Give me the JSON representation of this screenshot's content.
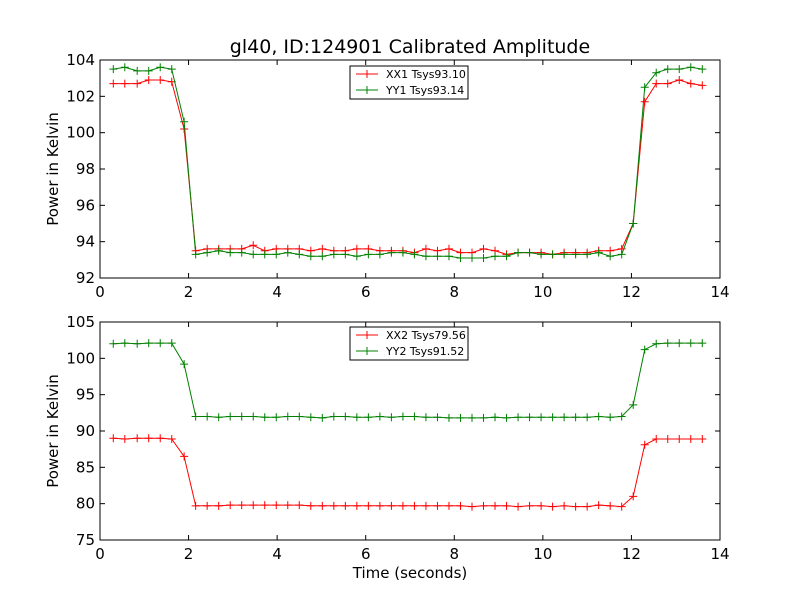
{
  "title": "gl40, ID:124901 Calibrated Amplitude",
  "chart_data": [
    {
      "type": "line",
      "ylabel": "Power in Kelvin",
      "xlabel": "",
      "xlim": [
        0,
        14
      ],
      "ylim": [
        92,
        104
      ],
      "xticks": [
        0,
        2,
        4,
        6,
        8,
        10,
        12,
        14
      ],
      "yticks": [
        92,
        94,
        96,
        98,
        100,
        102,
        104
      ],
      "grid": false,
      "legend_position": "top-center",
      "x": [
        0.3,
        0.56,
        0.84,
        1.1,
        1.36,
        1.62,
        1.9,
        2.16,
        2.42,
        2.68,
        2.94,
        3.2,
        3.46,
        3.72,
        3.98,
        4.24,
        4.5,
        4.76,
        5.02,
        5.28,
        5.54,
        5.8,
        6.06,
        6.32,
        6.58,
        6.84,
        7.1,
        7.36,
        7.62,
        7.88,
        8.14,
        8.4,
        8.66,
        8.92,
        9.18,
        9.44,
        9.7,
        9.96,
        10.22,
        10.48,
        10.74,
        11.0,
        11.26,
        11.52,
        11.78,
        12.04,
        12.3,
        12.56,
        12.82,
        13.08,
        13.34,
        13.6
      ],
      "series": [
        {
          "name": "XX1 Tsys93.10",
          "color": "#ff0000",
          "values": [
            102.7,
            102.7,
            102.7,
            102.9,
            102.9,
            102.8,
            100.2,
            93.5,
            93.6,
            93.6,
            93.6,
            93.6,
            93.8,
            93.5,
            93.6,
            93.6,
            93.6,
            93.5,
            93.6,
            93.5,
            93.5,
            93.6,
            93.6,
            93.5,
            93.5,
            93.5,
            93.4,
            93.6,
            93.5,
            93.6,
            93.4,
            93.4,
            93.6,
            93.5,
            93.3,
            93.4,
            93.4,
            93.4,
            93.3,
            93.4,
            93.4,
            93.4,
            93.5,
            93.5,
            93.6,
            95.0,
            101.7,
            102.7,
            102.7,
            102.9,
            102.7,
            102.6
          ]
        },
        {
          "name": "YY1 Tsys93.14",
          "color": "#008000",
          "values": [
            103.5,
            103.6,
            103.4,
            103.4,
            103.6,
            103.5,
            100.6,
            93.3,
            93.4,
            93.5,
            93.4,
            93.4,
            93.3,
            93.3,
            93.3,
            93.4,
            93.3,
            93.2,
            93.2,
            93.3,
            93.3,
            93.2,
            93.3,
            93.3,
            93.4,
            93.4,
            93.3,
            93.2,
            93.2,
            93.2,
            93.1,
            93.1,
            93.1,
            93.2,
            93.2,
            93.4,
            93.4,
            93.3,
            93.3,
            93.3,
            93.3,
            93.3,
            93.4,
            93.2,
            93.3,
            95.0,
            102.5,
            103.3,
            103.5,
            103.5,
            103.6,
            103.5
          ]
        }
      ]
    },
    {
      "type": "line",
      "ylabel": "Power in Kelvin",
      "xlabel": "Time (seconds)",
      "xlim": [
        0,
        14
      ],
      "ylim": [
        75,
        105
      ],
      "xticks": [
        0,
        2,
        4,
        6,
        8,
        10,
        12,
        14
      ],
      "yticks": [
        75,
        80,
        85,
        90,
        95,
        100,
        105
      ],
      "grid": false,
      "legend_position": "top-center",
      "x": [
        0.3,
        0.56,
        0.84,
        1.1,
        1.36,
        1.62,
        1.9,
        2.16,
        2.42,
        2.68,
        2.94,
        3.2,
        3.46,
        3.72,
        3.98,
        4.24,
        4.5,
        4.76,
        5.02,
        5.28,
        5.54,
        5.8,
        6.06,
        6.32,
        6.58,
        6.84,
        7.1,
        7.36,
        7.62,
        7.88,
        8.14,
        8.4,
        8.66,
        8.92,
        9.18,
        9.44,
        9.7,
        9.96,
        10.22,
        10.48,
        10.74,
        11.0,
        11.26,
        11.52,
        11.78,
        12.04,
        12.3,
        12.56,
        12.82,
        13.08,
        13.34,
        13.6
      ],
      "series": [
        {
          "name": "XX2 Tsys79.56",
          "color": "#ff0000",
          "values": [
            89.0,
            88.9,
            89.0,
            89.0,
            89.0,
            88.9,
            86.5,
            79.7,
            79.7,
            79.7,
            79.8,
            79.8,
            79.8,
            79.8,
            79.8,
            79.8,
            79.8,
            79.7,
            79.7,
            79.7,
            79.7,
            79.7,
            79.7,
            79.7,
            79.7,
            79.7,
            79.7,
            79.7,
            79.7,
            79.7,
            79.7,
            79.6,
            79.7,
            79.7,
            79.7,
            79.6,
            79.7,
            79.7,
            79.6,
            79.7,
            79.6,
            79.6,
            79.8,
            79.7,
            79.6,
            81.0,
            88.1,
            88.9,
            88.9,
            88.9,
            88.9,
            88.9
          ]
        },
        {
          "name": "YY2 Tsys91.52",
          "color": "#008000",
          "values": [
            102.0,
            102.1,
            102.0,
            102.1,
            102.1,
            102.1,
            99.2,
            92.0,
            92.0,
            91.9,
            92.0,
            92.0,
            92.0,
            91.9,
            91.9,
            92.0,
            92.0,
            91.9,
            91.8,
            92.0,
            92.0,
            91.9,
            91.9,
            92.0,
            91.9,
            92.0,
            92.0,
            91.9,
            91.9,
            91.8,
            91.8,
            91.8,
            91.8,
            91.9,
            91.8,
            91.9,
            91.9,
            91.9,
            91.9,
            91.9,
            91.9,
            91.9,
            92.0,
            91.9,
            92.0,
            93.6,
            101.2,
            102.0,
            102.1,
            102.1,
            102.1,
            102.1
          ]
        }
      ]
    }
  ]
}
